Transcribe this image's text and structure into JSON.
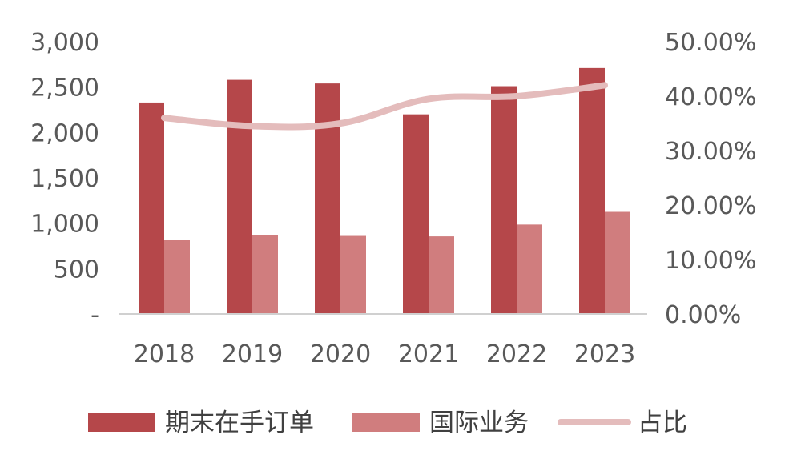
{
  "chart_data": {
    "type": "bar",
    "categories": [
      "2018",
      "2019",
      "2020",
      "2021",
      "2022",
      "2023"
    ],
    "series": [
      {
        "name": "期末在手订单",
        "kind": "bar",
        "axis": "left",
        "color": "#b5474a",
        "values": [
          2330,
          2580,
          2540,
          2200,
          2510,
          2710
        ]
      },
      {
        "name": "国际业务",
        "kind": "bar",
        "axis": "left",
        "color": "#d07d7e",
        "values": [
          820,
          870,
          860,
          855,
          985,
          1125
        ]
      },
      {
        "name": "占比",
        "kind": "line",
        "axis": "right",
        "color": "#e4bcbc",
        "values": [
          0.36,
          0.345,
          0.35,
          0.395,
          0.4,
          0.42
        ]
      }
    ],
    "y_left": {
      "min": 0,
      "max": 3000,
      "ticks": [
        "-",
        "500",
        "1,000",
        "1,500",
        "2,000",
        "2,500",
        "3,000"
      ]
    },
    "y_right": {
      "min": 0,
      "max": 0.5,
      "ticks": [
        "0.00%",
        "10.00%",
        "20.00%",
        "30.00%",
        "40.00%",
        "50.00%"
      ]
    },
    "grid": false,
    "legend": "bottom"
  }
}
